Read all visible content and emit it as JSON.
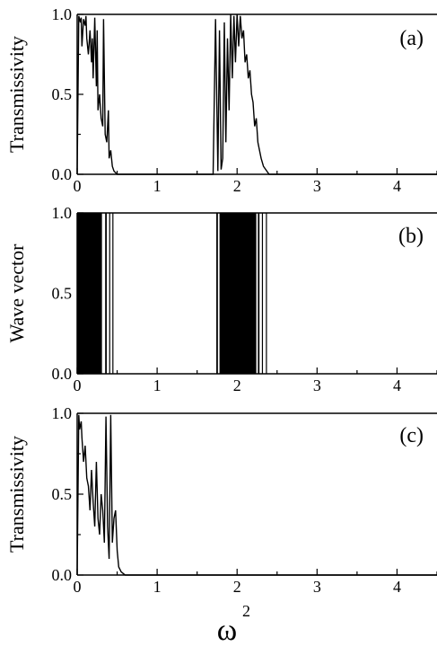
{
  "figure": {
    "xlabel": "ω",
    "xlabel_sup": "2"
  },
  "chart_data": [
    {
      "type": "line",
      "panel_label": "(a)",
      "ylabel": "Transmissivity",
      "xlim": [
        0,
        4.5
      ],
      "ylim": [
        0,
        1.0
      ],
      "xticks": [
        0,
        1,
        2,
        3,
        4
      ],
      "yticks": [
        0.0,
        0.5,
        1.0
      ],
      "ytick_labels": [
        "0.0",
        "0.5",
        "1.0"
      ],
      "series": [
        {
          "x": [
            0.0,
            0.02,
            0.04,
            0.05,
            0.06,
            0.08,
            0.1,
            0.11,
            0.12,
            0.14,
            0.16,
            0.18,
            0.19,
            0.2,
            0.22,
            0.24,
            0.25,
            0.26,
            0.28,
            0.3,
            0.32,
            0.33,
            0.35,
            0.37,
            0.39,
            0.4,
            0.42,
            0.44,
            0.46,
            0.5,
            0.6,
            1.0,
            1.5,
            1.7,
            1.73,
            1.76,
            1.78,
            1.8,
            1.82,
            1.84,
            1.86,
            1.88,
            1.9,
            1.92,
            1.94,
            1.96,
            1.98,
            2.0,
            2.02,
            2.04,
            2.06,
            2.08,
            2.1,
            2.12,
            2.14,
            2.16,
            2.18,
            2.2,
            2.22,
            2.24,
            2.26,
            2.28,
            2.3,
            2.33,
            2.4,
            3.0,
            4.5
          ],
          "y": [
            0.0,
            0.99,
            0.95,
            0.98,
            0.8,
            0.97,
            0.93,
            0.99,
            0.85,
            0.75,
            0.9,
            0.7,
            0.85,
            0.6,
            0.98,
            0.55,
            0.9,
            0.4,
            0.5,
            0.35,
            0.3,
            0.97,
            0.25,
            0.2,
            0.4,
            0.1,
            0.15,
            0.05,
            0.02,
            0.0,
            0.0,
            0.0,
            0.0,
            0.0,
            0.97,
            0.02,
            0.9,
            0.03,
            0.1,
            0.95,
            0.2,
            0.85,
            0.4,
            1.0,
            0.6,
            0.99,
            0.7,
            1.0,
            0.8,
            0.99,
            0.85,
            0.9,
            0.7,
            0.75,
            0.6,
            0.65,
            0.5,
            0.45,
            0.3,
            0.35,
            0.2,
            0.15,
            0.1,
            0.05,
            0.0,
            0.0,
            0.0
          ]
        }
      ]
    },
    {
      "type": "bar",
      "panel_label": "(b)",
      "ylabel": "Wave vector",
      "xlim": [
        0,
        4.5
      ],
      "ylim": [
        0,
        1.0
      ],
      "xticks": [
        0,
        1,
        2,
        3,
        4
      ],
      "yticks": [
        0.0,
        0.5,
        1.0
      ],
      "ytick_labels": [
        "0.0",
        "0.5",
        "1.0"
      ],
      "bands": [
        {
          "x_start": 0.0,
          "x_end": 0.31,
          "value": 1.0
        },
        {
          "x_start": 0.35,
          "x_end": 0.37,
          "value": 1.0
        },
        {
          "x_start": 0.4,
          "x_end": 0.41,
          "value": 1.0
        },
        {
          "x_start": 0.44,
          "x_end": 0.45,
          "value": 1.0
        },
        {
          "x_start": 1.74,
          "x_end": 1.76,
          "value": 1.0
        },
        {
          "x_start": 1.78,
          "x_end": 2.24,
          "value": 1.0
        },
        {
          "x_start": 2.26,
          "x_end": 2.28,
          "value": 1.0
        },
        {
          "x_start": 2.31,
          "x_end": 2.32,
          "value": 1.0
        },
        {
          "x_start": 2.36,
          "x_end": 2.37,
          "value": 1.0
        }
      ]
    },
    {
      "type": "line",
      "panel_label": "(c)",
      "ylabel": "Transmissivity",
      "xlim": [
        0,
        4.5
      ],
      "ylim": [
        0,
        1.0
      ],
      "xticks": [
        0,
        1,
        2,
        3,
        4
      ],
      "yticks": [
        0.0,
        0.5,
        1.0
      ],
      "ytick_labels": [
        "0.0",
        "0.5",
        "1.0"
      ],
      "series": [
        {
          "x": [
            0.0,
            0.02,
            0.03,
            0.05,
            0.06,
            0.08,
            0.1,
            0.12,
            0.14,
            0.16,
            0.18,
            0.2,
            0.22,
            0.24,
            0.26,
            0.28,
            0.3,
            0.32,
            0.34,
            0.36,
            0.38,
            0.4,
            0.42,
            0.44,
            0.46,
            0.48,
            0.5,
            0.52,
            0.55,
            0.6,
            1.0,
            2.0,
            3.0,
            4.5
          ],
          "y": [
            0.0,
            0.99,
            0.9,
            0.95,
            0.85,
            0.7,
            0.8,
            0.6,
            0.55,
            0.4,
            0.65,
            0.45,
            0.3,
            0.7,
            0.35,
            0.25,
            0.5,
            0.4,
            0.2,
            0.98,
            0.3,
            0.1,
            0.99,
            0.2,
            0.35,
            0.4,
            0.15,
            0.05,
            0.02,
            0.0,
            0.0,
            0.0,
            0.0,
            0.0
          ]
        }
      ]
    }
  ]
}
